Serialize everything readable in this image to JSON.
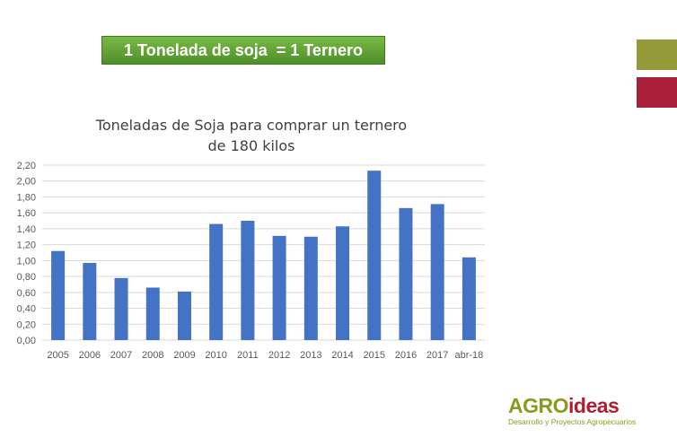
{
  "banner": {
    "text": "1 Tonelada de soja  = 1 Ternero"
  },
  "swatches": {
    "olive": "#949a3a",
    "red": "#a8203a"
  },
  "colors": {
    "bar": "#4472c4",
    "grid": "#d9d9d9",
    "axis_text": "#595959"
  },
  "chart_data": {
    "type": "bar",
    "title_line1": "Toneladas de Soja para comprar un ternero",
    "title_line2": "de 180 kilos",
    "categories": [
      "2005",
      "2006",
      "2007",
      "2008",
      "2009",
      "2010",
      "2011",
      "2012",
      "2013",
      "2014",
      "2015",
      "2016",
      "2017",
      "abr-18"
    ],
    "values": [
      1.12,
      0.97,
      0.78,
      0.66,
      0.61,
      1.46,
      1.5,
      1.31,
      1.3,
      1.43,
      2.13,
      1.66,
      1.71,
      1.04
    ],
    "y_ticks": [
      "0,00",
      "0,20",
      "0,40",
      "0,60",
      "0,80",
      "1,00",
      "1,20",
      "1,40",
      "1,60",
      "1,80",
      "2,00",
      "2,20"
    ],
    "ylim": [
      0,
      2.2
    ],
    "grid": true,
    "legend": "none"
  },
  "brand": {
    "name_part1": "AGRO",
    "name_part2": "ideas",
    "tagline": "Desarrollo y Proyectos Agropecuarios"
  }
}
